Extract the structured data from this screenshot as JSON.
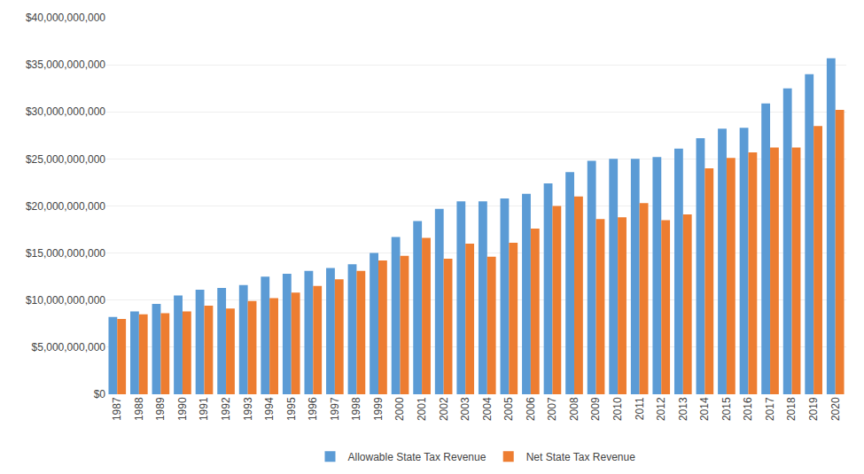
{
  "chart_data": {
    "type": "bar",
    "categories": [
      "1987",
      "1988",
      "1989",
      "1990",
      "1991",
      "1992",
      "1993",
      "1994",
      "1995",
      "1996",
      "1997",
      "1998",
      "1999",
      "2000",
      "2001",
      "2002",
      "2003",
      "2004",
      "2005",
      "2006",
      "2007",
      "2008",
      "2009",
      "2010",
      "2011",
      "2012",
      "2013",
      "2014",
      "2015",
      "2016",
      "2017",
      "2018",
      "2019",
      "2020"
    ],
    "series": [
      {
        "name": "Allowable State Tax Revenue",
        "color": "#5B9BD5",
        "values": [
          8200000000,
          8800000000,
          9600000000,
          10500000000,
          11100000000,
          11300000000,
          11600000000,
          12500000000,
          12800000000,
          13100000000,
          13400000000,
          13800000000,
          15000000000,
          16700000000,
          18400000000,
          19700000000,
          20500000000,
          20500000000,
          20800000000,
          21300000000,
          22400000000,
          23600000000,
          24800000000,
          25000000000,
          25000000000,
          25200000000,
          26100000000,
          27200000000,
          28200000000,
          28300000000,
          30900000000,
          32500000000,
          34000000000,
          35700000000
        ]
      },
      {
        "name": "Net State Tax Revenue",
        "color": "#ED7D31",
        "values": [
          8000000000,
          8500000000,
          8600000000,
          8800000000,
          9400000000,
          9100000000,
          9900000000,
          10200000000,
          10800000000,
          11500000000,
          12200000000,
          13100000000,
          14200000000,
          14700000000,
          16600000000,
          14400000000,
          16000000000,
          14600000000,
          16100000000,
          17600000000,
          20000000000,
          21000000000,
          18600000000,
          18800000000,
          20300000000,
          18500000000,
          19100000000,
          24000000000,
          25100000000,
          25700000000,
          26200000000,
          26200000000,
          28500000000,
          30200000000
        ]
      }
    ],
    "ylim": [
      0,
      40000000000
    ],
    "yticks": [
      {
        "value": 0,
        "label": "$0"
      },
      {
        "value": 5000000000,
        "label": "$5,000,000,000"
      },
      {
        "value": 10000000000,
        "label": "$10,000,000,000"
      },
      {
        "value": 15000000000,
        "label": "$15,000,000,000"
      },
      {
        "value": 20000000000,
        "label": "$20,000,000,000"
      },
      {
        "value": 25000000000,
        "label": "$25,000,000,000"
      },
      {
        "value": 30000000000,
        "label": "$30,000,000,000"
      },
      {
        "value": 35000000000,
        "label": "$35,000,000,000"
      },
      {
        "value": 40000000000,
        "label": "$40,000,000,000"
      }
    ],
    "grid": true,
    "legend": "bottom"
  }
}
